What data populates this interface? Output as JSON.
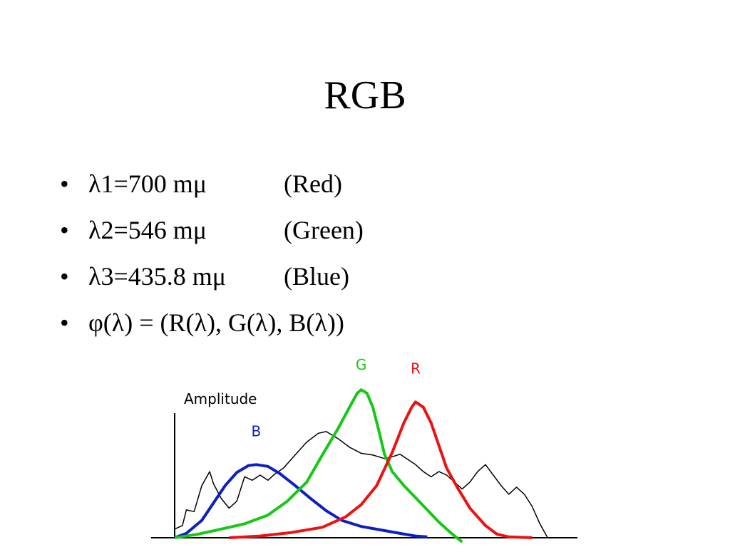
{
  "slide": {
    "title": "RGB",
    "bullets": [
      {
        "bullet": "•",
        "main": "λ1=700 mμ",
        "note": "(Red)"
      },
      {
        "bullet": "•",
        "main": "λ2=546 mμ",
        "note": "(Green)"
      },
      {
        "bullet": "•",
        "main": "λ3=435.8 mμ",
        "note": "(Blue)"
      },
      {
        "bullet": "•",
        "main": "φ(λ) = (R(λ), G(λ), B(λ))",
        "note": ""
      }
    ]
  },
  "chart_data": {
    "type": "line",
    "ylabel": "Amplitude",
    "xlabel": "",
    "grid": false,
    "legend": "inline labels above peaks",
    "series": [
      {
        "name": "B",
        "color": "#0b1fc4",
        "points": [
          [
            0,
            0
          ],
          [
            0.03,
            0.05
          ],
          [
            0.07,
            0.2
          ],
          [
            0.1,
            0.4
          ],
          [
            0.13,
            0.6
          ],
          [
            0.16,
            0.75
          ],
          [
            0.19,
            0.83
          ],
          [
            0.21,
            0.84
          ],
          [
            0.24,
            0.82
          ],
          [
            0.27,
            0.74
          ],
          [
            0.31,
            0.6
          ],
          [
            0.35,
            0.45
          ],
          [
            0.39,
            0.31
          ],
          [
            0.43,
            0.2
          ],
          [
            0.48,
            0.13
          ],
          [
            0.53,
            0.09
          ],
          [
            0.58,
            0.05
          ],
          [
            0.62,
            0.02
          ],
          [
            0.65,
            0.01
          ]
        ]
      },
      {
        "name": "G",
        "color": "#16c816",
        "points": [
          [
            0,
            0
          ],
          [
            0.06,
            0.04
          ],
          [
            0.12,
            0.1
          ],
          [
            0.18,
            0.16
          ],
          [
            0.24,
            0.26
          ],
          [
            0.29,
            0.42
          ],
          [
            0.34,
            0.64
          ],
          [
            0.38,
            0.95
          ],
          [
            0.42,
            1.25
          ],
          [
            0.45,
            1.5
          ],
          [
            0.47,
            1.66
          ],
          [
            0.48,
            1.7
          ],
          [
            0.495,
            1.66
          ],
          [
            0.51,
            1.5
          ],
          [
            0.525,
            1.24
          ],
          [
            0.54,
            0.96
          ],
          [
            0.56,
            0.76
          ],
          [
            0.59,
            0.6
          ],
          [
            0.62,
            0.46
          ],
          [
            0.65,
            0.32
          ],
          [
            0.68,
            0.18
          ],
          [
            0.71,
            0.06
          ],
          [
            0.74,
            -0.05
          ]
        ]
      },
      {
        "name": "R",
        "color": "#ee1111",
        "points": [
          [
            0.14,
            0
          ],
          [
            0.22,
            0.02
          ],
          [
            0.3,
            0.06
          ],
          [
            0.38,
            0.12
          ],
          [
            0.44,
            0.24
          ],
          [
            0.48,
            0.38
          ],
          [
            0.52,
            0.6
          ],
          [
            0.56,
            0.98
          ],
          [
            0.59,
            1.32
          ],
          [
            0.61,
            1.5
          ],
          [
            0.62,
            1.56
          ],
          [
            0.64,
            1.5
          ],
          [
            0.66,
            1.32
          ],
          [
            0.68,
            1.06
          ],
          [
            0.7,
            0.8
          ],
          [
            0.73,
            0.56
          ],
          [
            0.76,
            0.34
          ],
          [
            0.8,
            0.14
          ],
          [
            0.83,
            0.04
          ],
          [
            0.86,
            0.01
          ],
          [
            0.92,
            0
          ]
        ]
      },
      {
        "name": "",
        "color": "#000000",
        "points": [
          [
            0,
            0.1
          ],
          [
            0.02,
            0.14
          ],
          [
            0.03,
            0.32
          ],
          [
            0.05,
            0.3
          ],
          [
            0.07,
            0.6
          ],
          [
            0.09,
            0.76
          ],
          [
            0.1,
            0.62
          ],
          [
            0.12,
            0.45
          ],
          [
            0.14,
            0.34
          ],
          [
            0.16,
            0.42
          ],
          [
            0.18,
            0.7
          ],
          [
            0.2,
            0.66
          ],
          [
            0.22,
            0.72
          ],
          [
            0.24,
            0.66
          ],
          [
            0.26,
            0.74
          ],
          [
            0.28,
            0.8
          ],
          [
            0.31,
            0.95
          ],
          [
            0.34,
            1.1
          ],
          [
            0.37,
            1.2
          ],
          [
            0.39,
            1.22
          ],
          [
            0.42,
            1.14
          ],
          [
            0.45,
            1.04
          ],
          [
            0.48,
            0.97
          ],
          [
            0.51,
            0.95
          ],
          [
            0.54,
            0.91
          ],
          [
            0.56,
            0.93
          ],
          [
            0.58,
            0.96
          ],
          [
            0.6,
            0.9
          ],
          [
            0.62,
            0.84
          ],
          [
            0.64,
            0.76
          ],
          [
            0.66,
            0.7
          ],
          [
            0.68,
            0.76
          ],
          [
            0.7,
            0.72
          ],
          [
            0.72,
            0.64
          ],
          [
            0.74,
            0.56
          ],
          [
            0.76,
            0.64
          ],
          [
            0.78,
            0.76
          ],
          [
            0.8,
            0.84
          ],
          [
            0.82,
            0.72
          ],
          [
            0.84,
            0.6
          ],
          [
            0.86,
            0.5
          ],
          [
            0.88,
            0.58
          ],
          [
            0.9,
            0.5
          ],
          [
            0.92,
            0.36
          ],
          [
            0.94,
            0.16
          ],
          [
            0.96,
            0
          ]
        ]
      }
    ],
    "xlim": [
      0,
      1
    ],
    "ylim": [
      0,
      1.8
    ]
  }
}
